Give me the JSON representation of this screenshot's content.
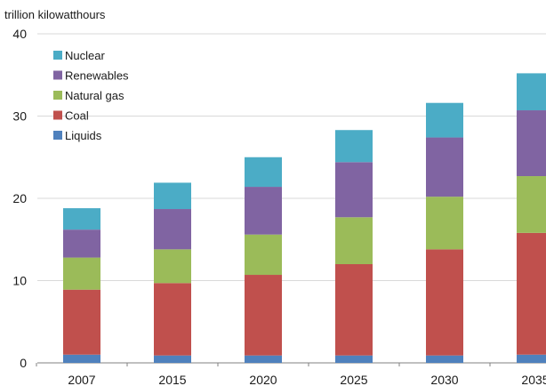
{
  "chart_data": {
    "type": "bar",
    "stacked": true,
    "title": "",
    "ylabel": "trillion kilowatthours",
    "xlabel": "",
    "ylim": [
      0,
      40
    ],
    "yticks": [
      "0",
      "10",
      "20",
      "30",
      "40"
    ],
    "grid": true,
    "legend_position": "top-left",
    "categories": [
      "2007",
      "2015",
      "2020",
      "2025",
      "2030",
      "2035"
    ],
    "series": [
      {
        "name": "Liquids",
        "color": "#4f81bd",
        "values": [
          1.0,
          0.9,
          0.9,
          0.9,
          0.9,
          1.0
        ]
      },
      {
        "name": "Coal",
        "color": "#c0504d",
        "values": [
          7.9,
          8.8,
          9.8,
          11.1,
          12.9,
          14.8
        ]
      },
      {
        "name": "Natural gas",
        "color": "#9bbb59",
        "values": [
          3.9,
          4.1,
          4.9,
          5.7,
          6.4,
          6.9
        ]
      },
      {
        "name": "Renewables",
        "color": "#8064a2",
        "values": [
          3.4,
          4.9,
          5.8,
          6.7,
          7.2,
          8.0
        ]
      },
      {
        "name": "Nuclear",
        "color": "#4bacc6",
        "values": [
          2.6,
          3.2,
          3.6,
          3.9,
          4.2,
          4.5
        ]
      }
    ],
    "legend_order": [
      "Nuclear",
      "Renewables",
      "Natural gas",
      "Coal",
      "Liquids"
    ]
  }
}
